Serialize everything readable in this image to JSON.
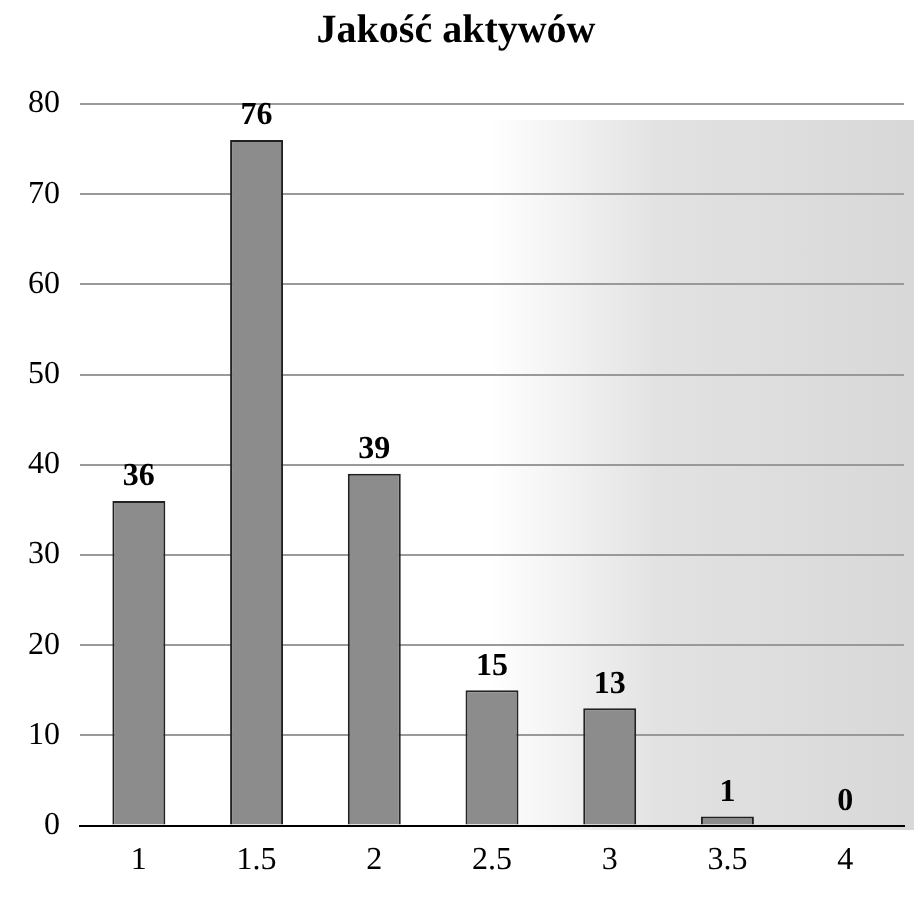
{
  "chart_data": {
    "type": "bar",
    "title": "Jakość aktywów",
    "categories": [
      "1",
      "1.5",
      "2",
      "2.5",
      "3",
      "3.5",
      "4"
    ],
    "values": [
      36,
      76,
      39,
      15,
      13,
      1,
      0
    ],
    "color": "#8c8c8c",
    "ylim": [
      0,
      80
    ],
    "yticks": [
      0,
      10,
      20,
      30,
      40,
      50,
      60,
      70,
      80
    ],
    "grid": "y",
    "data_labels": true,
    "legend": false
  }
}
